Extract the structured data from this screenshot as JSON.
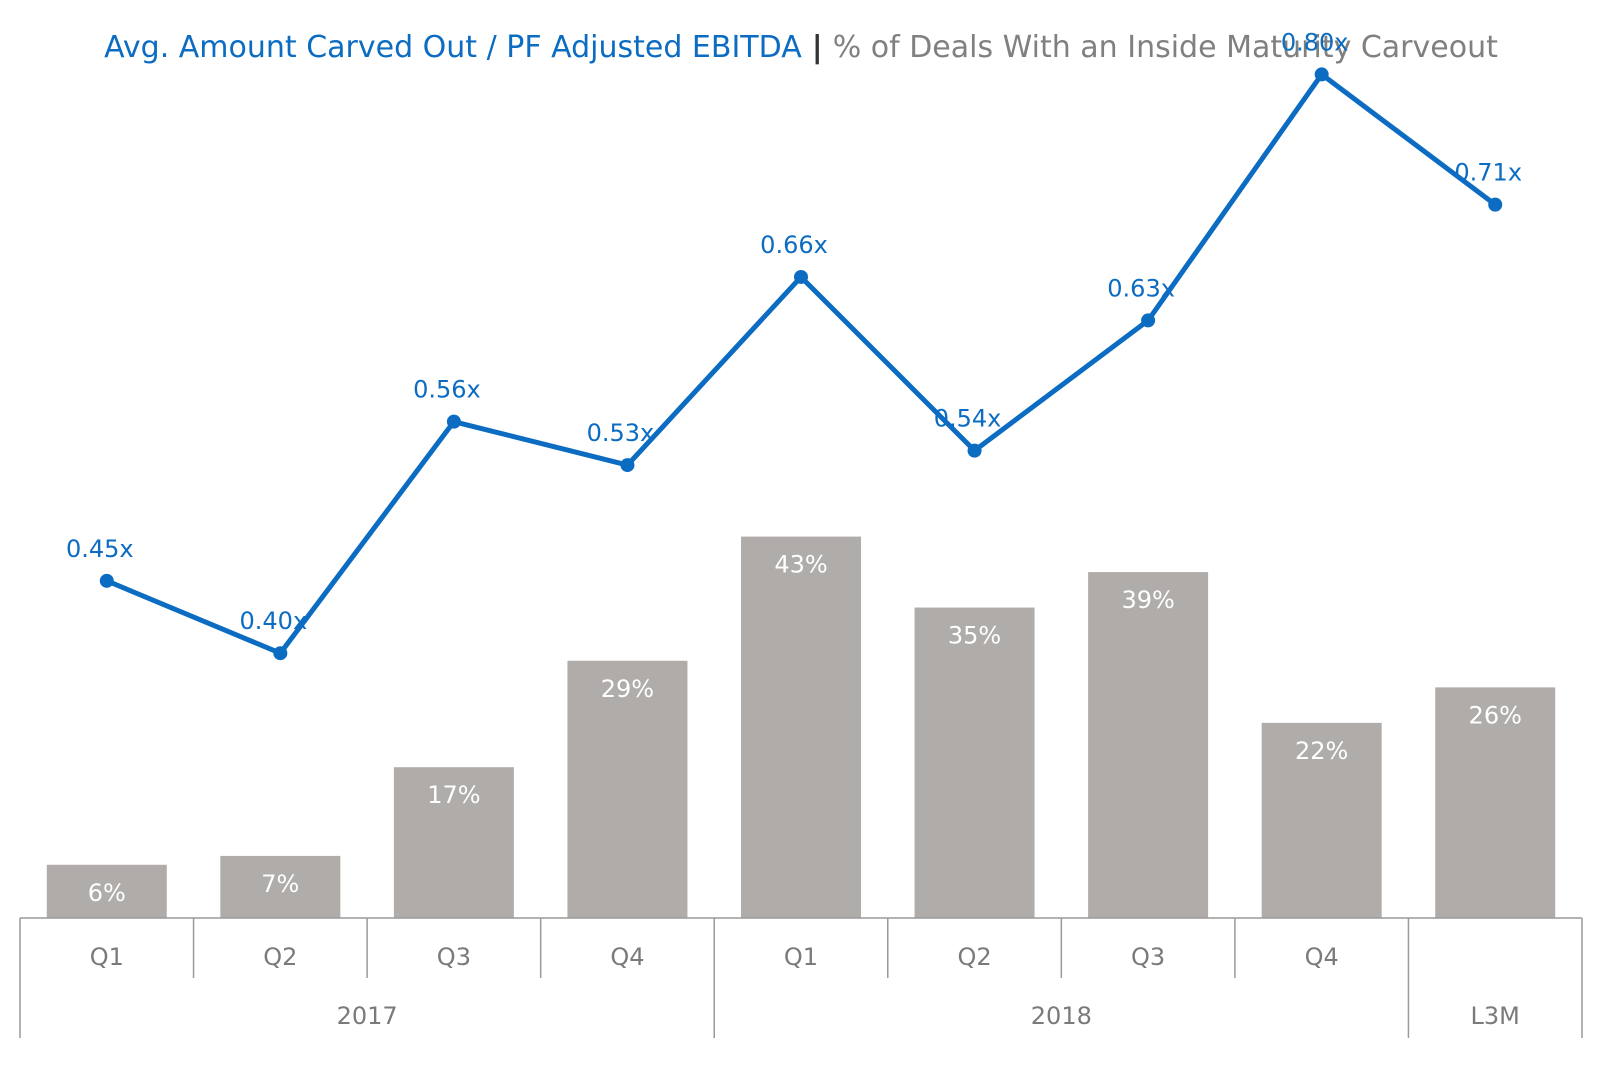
{
  "title": {
    "primary": "Avg. Amount Carved Out / PF Adjusted EBITDA",
    "separator": "|",
    "secondary": "% of Deals With an Inside Maturity Carveout"
  },
  "colors": {
    "line": "#0b6cc2",
    "bar": "#b0acaa",
    "bar_label": "#ffffff",
    "axis_text": "#7a7a7a",
    "axis_line": "#9a9a9a"
  },
  "chart_data": {
    "type": "bar",
    "categories": [
      "Q1",
      "Q2",
      "Q3",
      "Q4",
      "Q1",
      "Q2",
      "Q3",
      "Q4",
      ""
    ],
    "groups": [
      {
        "label": "2017",
        "span": 4
      },
      {
        "label": "2018",
        "span": 4
      },
      {
        "label": "L3M",
        "span": 1
      }
    ],
    "series": [
      {
        "type": "bar",
        "values": [
          6,
          7,
          17,
          29,
          43,
          35,
          39,
          22,
          26
        ],
        "labels": [
          "6%",
          "7%",
          "17%",
          "29%",
          "43%",
          "35%",
          "39%",
          "22%",
          "26%"
        ]
      },
      {
        "type": "line",
        "values": [
          0.45,
          0.4,
          0.56,
          0.53,
          0.66,
          0.54,
          0.63,
          0.8,
          0.71
        ],
        "labels": [
          "0.45x",
          "0.40x",
          "0.56x",
          "0.53x",
          "0.66x",
          "0.54x",
          "0.63x",
          "0.80x",
          "0.71x"
        ]
      }
    ],
    "legend": "none",
    "grid": false
  }
}
